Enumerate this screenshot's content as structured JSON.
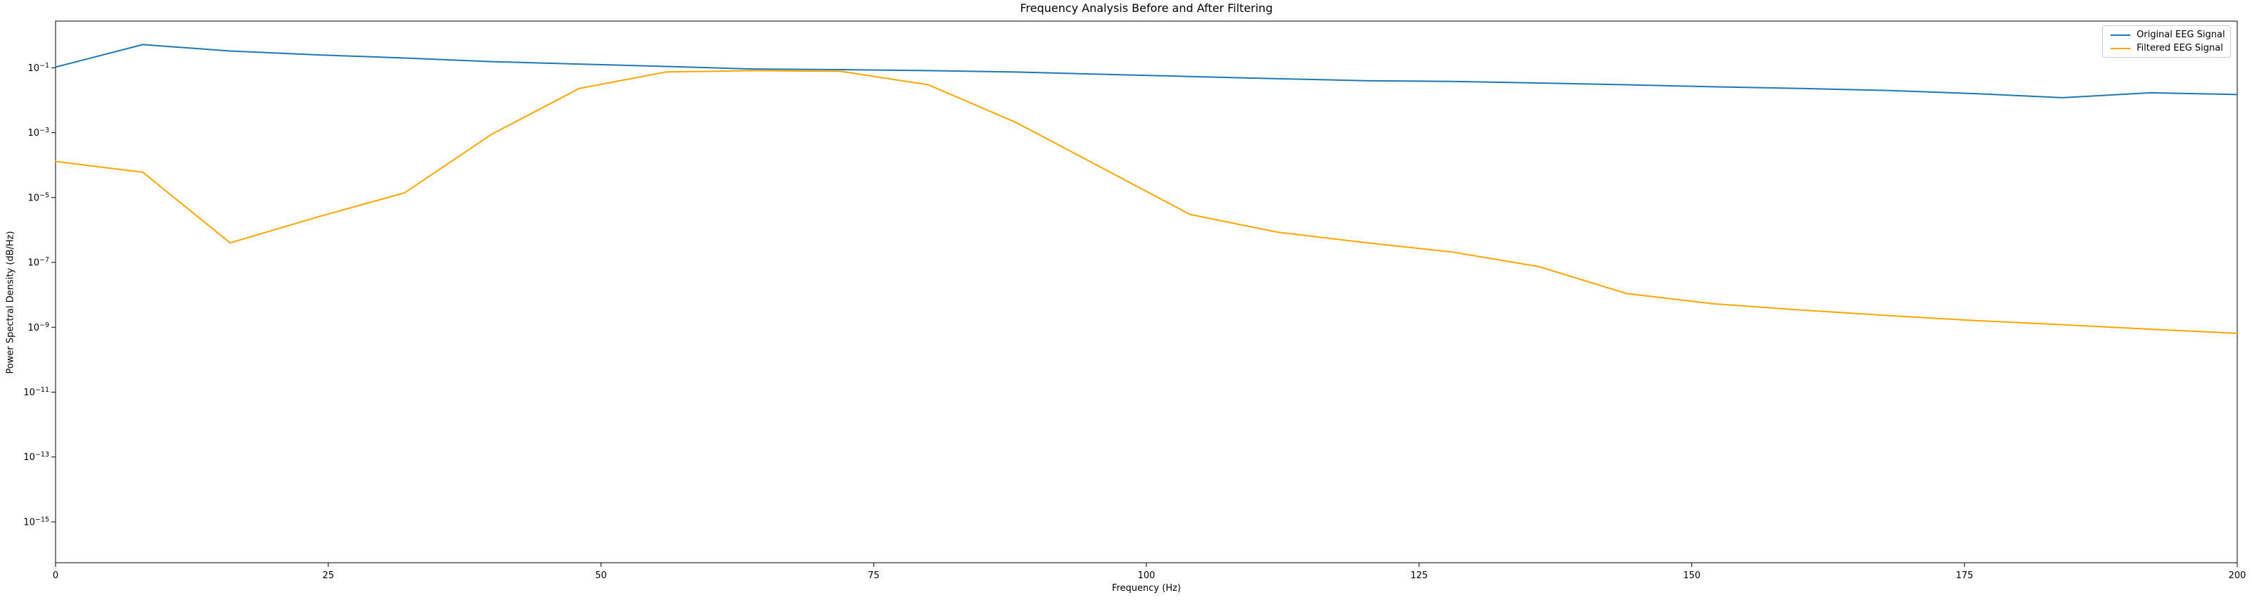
{
  "figure": {
    "background": "#ffffff",
    "spine_color": "#000000",
    "tick_color": "#000000"
  },
  "chart_data": {
    "type": "line",
    "title": "Frequency Analysis Before and After Filtering",
    "xlabel": "Frequency (Hz)",
    "ylabel": "Power Spectral Density (dB/Hz)",
    "yscale": "log",
    "grid": false,
    "legend_position": "upper right",
    "xlim": [
      0,
      200
    ],
    "ylim_log10": [
      -16.26,
      0.44
    ],
    "x_ticks": [
      0,
      25,
      50,
      75,
      100,
      125,
      150,
      175,
      200
    ],
    "y_tick_exponents": [
      -1,
      -3,
      -5,
      -7,
      -9,
      -11,
      -13,
      -15
    ],
    "x": [
      0,
      8,
      16,
      24,
      32,
      40,
      48,
      56,
      64,
      72,
      80,
      88,
      96,
      104,
      112,
      120,
      128,
      136,
      144,
      152,
      160,
      168,
      176,
      184,
      192,
      200
    ],
    "series": [
      {
        "name": "Original EEG Signal",
        "color": "#1f77b4",
        "values": [
          0.105,
          0.52,
          0.33,
          0.25,
          0.2,
          0.155,
          0.13,
          0.11,
          0.092,
          0.088,
          0.082,
          0.074,
          0.063,
          0.054,
          0.046,
          0.04,
          0.038,
          0.034,
          0.03,
          0.026,
          0.023,
          0.02,
          0.016,
          0.012,
          0.017,
          0.015
        ]
      },
      {
        "name": "Filtered EEG Signal",
        "color": "#ffa500",
        "values": [
          0.00013,
          6e-05,
          4e-07,
          2.5e-06,
          1.4e-05,
          0.0009,
          0.023,
          0.075,
          0.082,
          0.078,
          0.03,
          0.0021,
          8e-05,
          3e-06,
          8.6e-07,
          4.1e-07,
          2.1e-07,
          7.4e-08,
          1.1e-08,
          5.3e-09,
          3.4e-09,
          2.3e-09,
          1.6e-09,
          1.2e-09,
          8.7e-10,
          6.5e-10
        ]
      }
    ]
  }
}
